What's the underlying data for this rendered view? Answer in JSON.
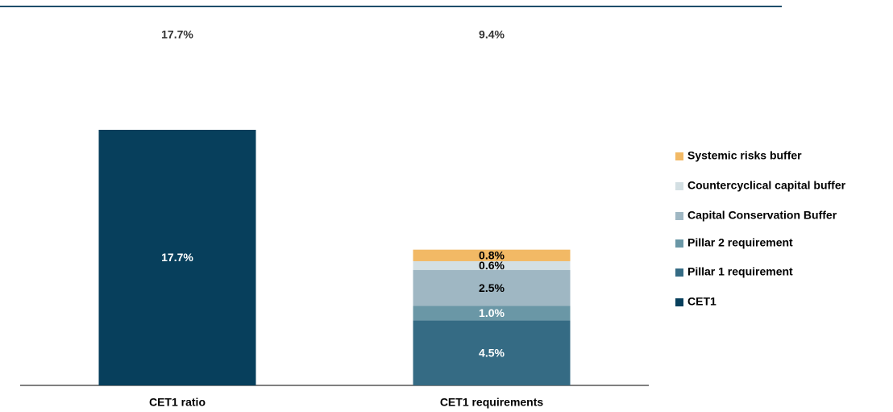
{
  "chart_data": {
    "type": "stacked_bar",
    "categories": [
      "CET1 ratio",
      "CET1 requirements"
    ],
    "totals": [
      17.7,
      9.4
    ],
    "total_labels": [
      "17.7%",
      "9.4%"
    ],
    "series": [
      {
        "name": "CET1",
        "color": "#073f5c",
        "label_color": "#ffffff",
        "values": [
          17.7,
          null
        ],
        "value_labels": [
          "17.7%",
          null
        ]
      },
      {
        "name": "Pillar 1 requirement",
        "color": "#356b84",
        "label_color": "#ffffff",
        "values": [
          null,
          4.5
        ],
        "value_labels": [
          null,
          "4.5%"
        ]
      },
      {
        "name": "Pillar 2 requirement",
        "color": "#6a97a6",
        "label_color": "#ffffff",
        "values": [
          null,
          1.0
        ],
        "value_labels": [
          null,
          "1.0%"
        ]
      },
      {
        "name": "Capital Conservation Buffer",
        "color": "#9fb7c3",
        "label_color": "#000000",
        "values": [
          null,
          2.5
        ],
        "value_labels": [
          null,
          "2.5%"
        ]
      },
      {
        "name": "Countercyclical capital buffer",
        "color": "#d3dfe3",
        "label_color": "#000000",
        "values": [
          null,
          0.6
        ],
        "value_labels": [
          null,
          "0.6%"
        ]
      },
      {
        "name": "Systemic risks buffer",
        "color": "#f2b965",
        "label_color": "#000000",
        "values": [
          null,
          0.8
        ],
        "value_labels": [
          null,
          "0.8%"
        ]
      }
    ],
    "legend": "right"
  }
}
